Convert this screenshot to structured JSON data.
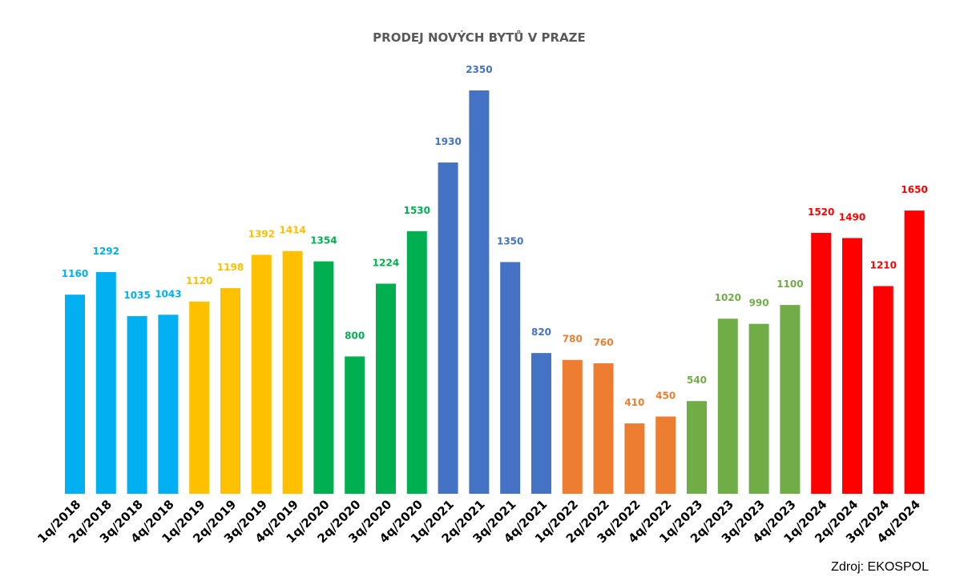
{
  "chart_data": {
    "type": "bar",
    "title": "PRODEJ NOVÝCH BYTŮ V PRAZE",
    "xlabel": "",
    "ylabel": "",
    "ylim": [
      0,
      2350
    ],
    "grid": false,
    "categories": [
      "1q/2018",
      "2q/2018",
      "3q/2018",
      "4q/2018",
      "1q/2019",
      "2q/2019",
      "3q/2019",
      "4q/2019",
      "1q/2020",
      "2q/2020",
      "3q/2020",
      "4q/2020",
      "1q/2021",
      "2q/2021",
      "3q/2021",
      "4q/2021",
      "1q/2022",
      "2q/2022",
      "3q/2022",
      "4q/2022",
      "1q/2023",
      "2q/2023",
      "3q/2023",
      "4q/2023",
      "1q/2024",
      "2q/2024",
      "3q/2024",
      "4q/2024"
    ],
    "values": [
      1160,
      1292,
      1035,
      1043,
      1120,
      1198,
      1392,
      1414,
      1354,
      800,
      1224,
      1530,
      1930,
      2350,
      1350,
      820,
      780,
      760,
      410,
      450,
      540,
      1020,
      990,
      1100,
      1520,
      1490,
      1210,
      1650
    ],
    "year_colors": {
      "2018": "#00b0f0",
      "2019": "#ffc000",
      "2020": "#00b050",
      "2021": "#4472c4",
      "2022": "#ed7d31",
      "2023": "#70ad47",
      "2024": "#ff0000"
    }
  },
  "source": "Zdroj: EKOSPOL"
}
